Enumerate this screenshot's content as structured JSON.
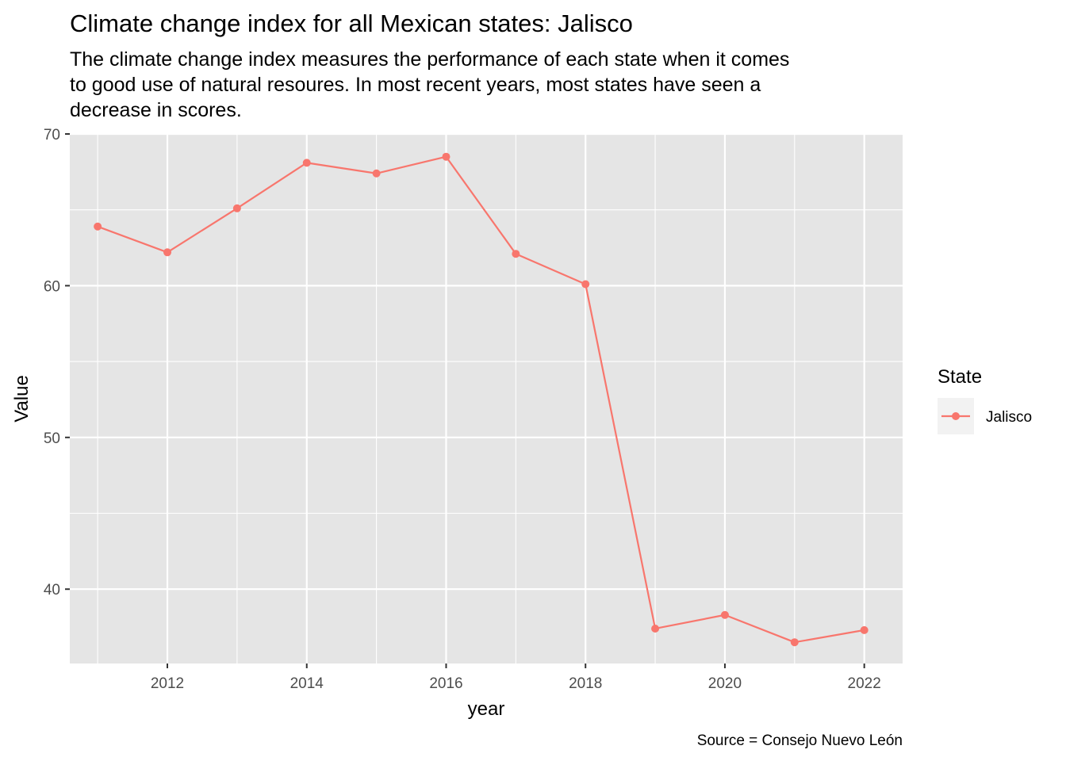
{
  "chart_data": {
    "type": "line",
    "title": "Climate change index for all Mexican states: Jalisco",
    "subtitle": [
      "The climate change index measures the performance of each state when it comes",
      "to good use of natural resoures. In most recent years, most states have seen a",
      "decrease in scores."
    ],
    "xlabel": "year",
    "ylabel": "Value",
    "caption": "Source = Consejo Nuevo León",
    "xlim": [
      2010.6,
      2022.55
    ],
    "ylim": [
      35.1,
      70
    ],
    "x_ticks": [
      2012,
      2014,
      2016,
      2018,
      2020,
      2022
    ],
    "x_tick_labels": [
      "2012",
      "2014",
      "2016",
      "2018",
      "2020",
      "2022"
    ],
    "y_ticks": [
      40,
      50,
      60,
      70
    ],
    "y_tick_labels": [
      "40",
      "50",
      "60",
      "70"
    ],
    "grid": true,
    "legend": {
      "title": "State",
      "position": "right"
    },
    "series": [
      {
        "name": "Jalisco",
        "color": "#F8766D",
        "x": [
          2011,
          2012,
          2013,
          2014,
          2015,
          2016,
          2017,
          2018,
          2019,
          2020,
          2021,
          2022
        ],
        "values": [
          63.9,
          62.2,
          65.1,
          68.1,
          67.4,
          68.5,
          62.1,
          60.1,
          37.4,
          38.3,
          36.5,
          37.3
        ]
      }
    ]
  },
  "colors": {
    "panel_background": "#E5E5E5",
    "grid_line": "#FFFFFF",
    "axis_text": "#4D4D4D",
    "tick_mark": "#333333",
    "legend_key_background": "#F2F2F2"
  }
}
